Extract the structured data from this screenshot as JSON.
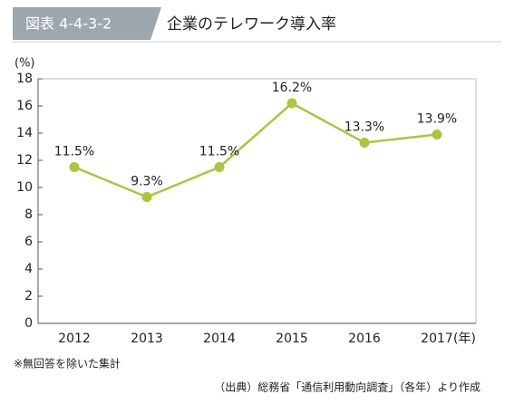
{
  "header": {
    "figure_number": "図表 4-4-3-2",
    "title": "企業のテレワーク導入率"
  },
  "chart_data": {
    "type": "line",
    "y_axis_label": "(%)",
    "x_axis_label": "(年)",
    "categories": [
      "2012",
      "2013",
      "2014",
      "2015",
      "2016",
      "2017"
    ],
    "values": [
      11.5,
      9.3,
      11.5,
      16.2,
      13.3,
      13.9
    ],
    "value_labels": [
      "11.5%",
      "9.3%",
      "11.5%",
      "16.2%",
      "13.3%",
      "13.9%"
    ],
    "color": "#a8c83a",
    "ylim": [
      0,
      18
    ],
    "yticks": [
      0,
      2,
      4,
      6,
      8,
      10,
      12,
      14,
      16,
      18
    ],
    "grid": false
  },
  "notes": {
    "footnote": "※無回答を除いた集計",
    "source": "（出典）総務省「通信利用動向調査」（各年）より作成"
  }
}
